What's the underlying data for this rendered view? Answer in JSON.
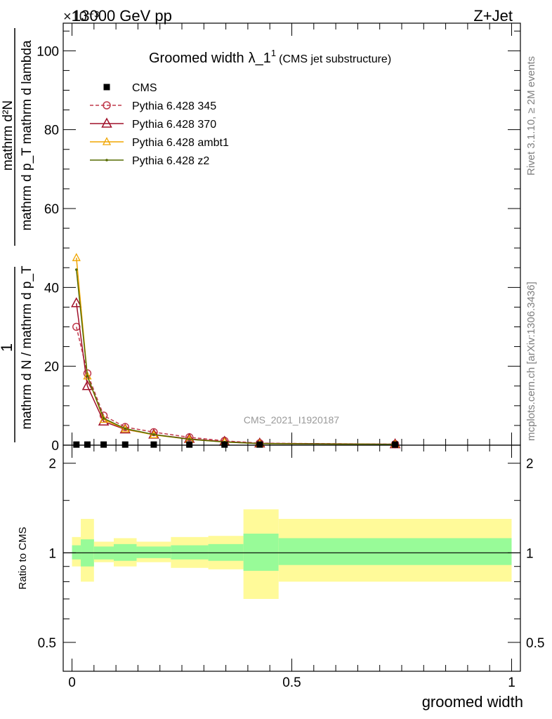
{
  "header": {
    "energy": "13000 GeV pp",
    "process": "Z+Jet",
    "exponent": "×10⁻³"
  },
  "side": {
    "rivet": "Rivet 3.1.10, ≥ 2M events",
    "mcplots": "mcplots.cern.ch [arXiv:1306.3436]"
  },
  "watermark": "CMS_2021_I1920187",
  "title": {
    "main": "Groomed width",
    "lambda": "λ_1",
    "sup": "1",
    "sub": "(CMS jet substructure)"
  },
  "labels": {
    "xlabel": "groomed width",
    "ylabel_upper_num": "1",
    "ylabel_upper_den": "mathrm d N / mathrm d p_T",
    "ylabel_lower_num": "mathrm d²N",
    "ylabel_lower_den": "mathrm d p_T mathrm d lambda",
    "ratio_ylabel": "Ratio to CMS"
  },
  "colors": {
    "cms": "#000000",
    "p345": "#c0394b",
    "p370": "#a0102a",
    "ambt1": "#f0a500",
    "z2": "#556b00",
    "band_inner": "#98fb98",
    "band_outer": "#fffa99"
  },
  "chart_data": [
    {
      "type": "line",
      "title": "Groomed width λ_1^1 (CMS jet substructure)",
      "xlabel": "groomed width",
      "xlim": [
        -0.02,
        1.02
      ],
      "ylim": [
        0,
        107
      ],
      "y_scale_note": "×10⁻³",
      "xticks": [
        0,
        0.5,
        1
      ],
      "xtick_labels": [
        "0",
        "0.5",
        "1"
      ],
      "yticks": [
        0,
        20,
        40,
        60,
        80,
        100
      ],
      "ytick_labels": [
        "0",
        "20",
        "40",
        "60",
        "80",
        "100"
      ],
      "legend": "top-left",
      "x": [
        0.01,
        0.035,
        0.072,
        0.121,
        0.186,
        0.267,
        0.347,
        0.427,
        0.735
      ],
      "series": [
        {
          "name": "CMS",
          "style": "square",
          "values": [
            0.15,
            0.15,
            0.15,
            0.15,
            0.15,
            0.15,
            0.15,
            0.15,
            0.15
          ]
        },
        {
          "name": "Pythia 6.428 345",
          "style": "circle-dashed",
          "values": [
            30,
            18.2,
            7.5,
            4.6,
            3.3,
            2.0,
            1.1,
            0.5,
            0.25
          ]
        },
        {
          "name": "Pythia 6.428 370",
          "style": "triangle-open",
          "values": [
            36,
            15,
            6,
            4.0,
            2.7,
            1.6,
            0.9,
            0.45,
            0.25
          ]
        },
        {
          "name": "Pythia 6.428 ambt1",
          "style": "triangle-small",
          "values": [
            47.5,
            17.5,
            6.5,
            4.1,
            2.6,
            1.5,
            0.8,
            0.4,
            0.2
          ]
        },
        {
          "name": "Pythia 6.428 z2",
          "style": "dot",
          "values": [
            44.5,
            17.5,
            6.8,
            4.2,
            2.7,
            1.5,
            0.8,
            0.4,
            0.2
          ]
        }
      ]
    },
    {
      "type": "area",
      "ylabel": "Ratio to CMS",
      "ylim": [
        0.4,
        2.3
      ],
      "y_scale": "log",
      "yticks": [
        0.5,
        1,
        2
      ],
      "ytick_labels": [
        "0.5",
        "1",
        "2"
      ],
      "reference_line": 1,
      "bin_edges": [
        0.0,
        0.02,
        0.05,
        0.095,
        0.147,
        0.225,
        0.31,
        0.39,
        0.47,
        1.0
      ],
      "inner_band": [
        [
          0.95,
          1.06
        ],
        [
          0.9,
          1.11
        ],
        [
          0.95,
          1.05
        ],
        [
          0.94,
          1.07
        ],
        [
          0.96,
          1.05
        ],
        [
          0.95,
          1.06
        ],
        [
          0.94,
          1.07
        ],
        [
          0.87,
          1.16
        ],
        [
          0.91,
          1.12
        ]
      ],
      "outer_band": [
        [
          0.9,
          1.13
        ],
        [
          0.8,
          1.3
        ],
        [
          0.93,
          1.09
        ],
        [
          0.9,
          1.12
        ],
        [
          0.93,
          1.09
        ],
        [
          0.89,
          1.13
        ],
        [
          0.88,
          1.14
        ],
        [
          0.7,
          1.4
        ],
        [
          0.8,
          1.3
        ]
      ]
    }
  ]
}
